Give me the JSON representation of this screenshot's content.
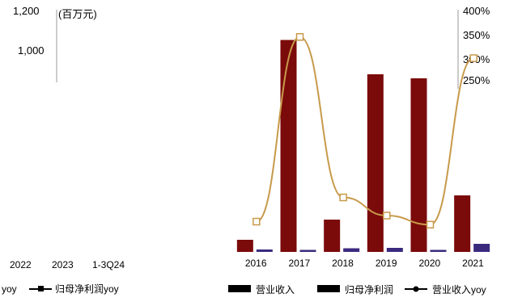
{
  "chart_data": [
    {
      "type": "bar",
      "categories": [
        "2016",
        "2017",
        "2018",
        "2019",
        "2020",
        "2021"
      ],
      "x_tick_labels": [
        "2016",
        "2017",
        "2018",
        "2019",
        "2020",
        "2021"
      ],
      "y_left_tick_labels": [
        "1,200",
        "1,000"
      ],
      "y_left_unit": "(百万元)",
      "y_right_tick_labels": [
        "400%",
        "350%",
        "300%",
        "250%"
      ],
      "y_left_range": [
        0,
        1200
      ],
      "y_right_range": [
        0,
        4
      ],
      "series": [
        {
          "name": "营业收入",
          "type": "bar",
          "axis": "left",
          "color": "#7b0a0a",
          "values": [
            60,
            1050,
            160,
            880,
            860,
            280
          ]
        },
        {
          "name": "归母净利润",
          "type": "bar",
          "axis": "left",
          "color": "#3a2a7e",
          "values": [
            12,
            10,
            18,
            20,
            10,
            40
          ]
        },
        {
          "name": "营业收入yoy",
          "type": "line",
          "axis": "right",
          "color": "#c79a4a",
          "values": [
            0.5,
            3.55,
            0.9,
            0.6,
            0.45,
            3.2
          ]
        }
      ],
      "legend_position": "bottom"
    }
  ],
  "legend_left": {
    "fragment": "yoy",
    "second_label": "归母净利润yoy"
  },
  "left_panel": {
    "x_tick_labels": [
      "2022",
      "2023",
      "1-3Q24"
    ],
    "green_bar_color": "#8a9a2a"
  }
}
